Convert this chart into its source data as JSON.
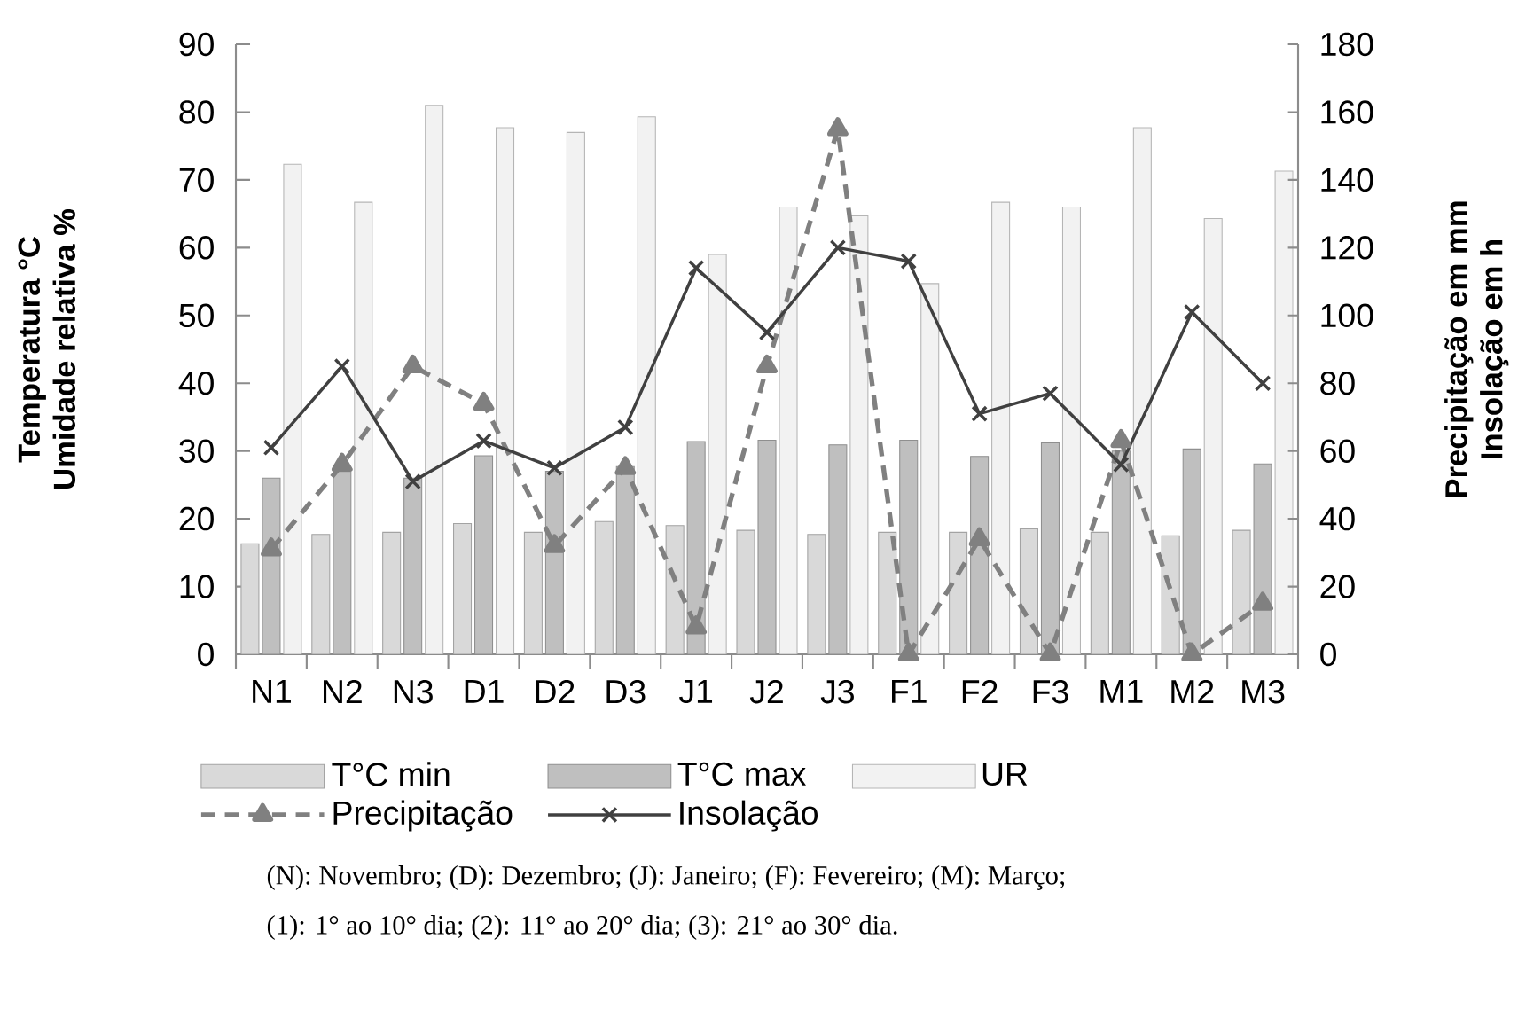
{
  "chart_data": {
    "type": "bar",
    "categories": [
      "N1",
      "N2",
      "N3",
      "D1",
      "D2",
      "D3",
      "J1",
      "J2",
      "J3",
      "F1",
      "F2",
      "F3",
      "M1",
      "M2",
      "M3"
    ],
    "ylabel": "Temperatura °C Umidade relativa %",
    "y2label": "Precipitação em mm Insolação em h",
    "ylim": [
      0,
      90
    ],
    "yticks": [
      0,
      10,
      20,
      30,
      40,
      50,
      60,
      70,
      80,
      90
    ],
    "y2lim": [
      0,
      180
    ],
    "y2ticks": [
      0,
      20,
      40,
      60,
      80,
      100,
      120,
      140,
      160,
      180
    ],
    "legend": "bottom",
    "series": [
      {
        "name": "T°C min",
        "color": "#d9d9d9",
        "values": [
          16.3,
          17.7,
          18,
          19.3,
          18,
          19.6,
          19,
          18.3,
          17.7,
          18,
          18,
          18.5,
          18,
          17.5,
          18.3
        ]
      },
      {
        "name": "T°C max",
        "color": "#bfbfbf",
        "values": [
          26,
          27,
          26,
          29.3,
          27,
          27.7,
          31.4,
          31.6,
          30.9,
          31.6,
          29.2,
          31.2,
          30,
          30.3,
          28.1
        ]
      },
      {
        "name": "UR",
        "color": "#f2f2f2",
        "values": [
          72.3,
          66.7,
          81,
          77.7,
          77,
          79.3,
          59,
          66,
          64.7,
          54.7,
          66.7,
          66,
          77.7,
          64.3,
          71.3
        ]
      },
      {
        "name": "Precipitação",
        "type": "line",
        "axis": "y2",
        "color": "#808080",
        "marker": "triangle",
        "line_style": "dashed",
        "values": [
          31,
          56,
          85,
          74,
          32,
          55,
          8,
          85,
          155,
          0,
          34,
          0,
          63,
          0,
          15
        ]
      },
      {
        "name": "Insolação",
        "type": "line",
        "axis": "y2",
        "color": "#404040",
        "marker": "cross",
        "line_style": "solid",
        "values": [
          61,
          85,
          51,
          63,
          55,
          67,
          114,
          95,
          120,
          116,
          71,
          77,
          56,
          101,
          80
        ]
      }
    ],
    "annotations": [
      "(N): Novembro; (D): Dezembro; (J): Janeiro; (F): Fevereiro; (M): Março;",
      "(1): 1° ao 10° dia;  (2): 11° ao 20° dia; (3): 21° ao 30° dia."
    ]
  }
}
